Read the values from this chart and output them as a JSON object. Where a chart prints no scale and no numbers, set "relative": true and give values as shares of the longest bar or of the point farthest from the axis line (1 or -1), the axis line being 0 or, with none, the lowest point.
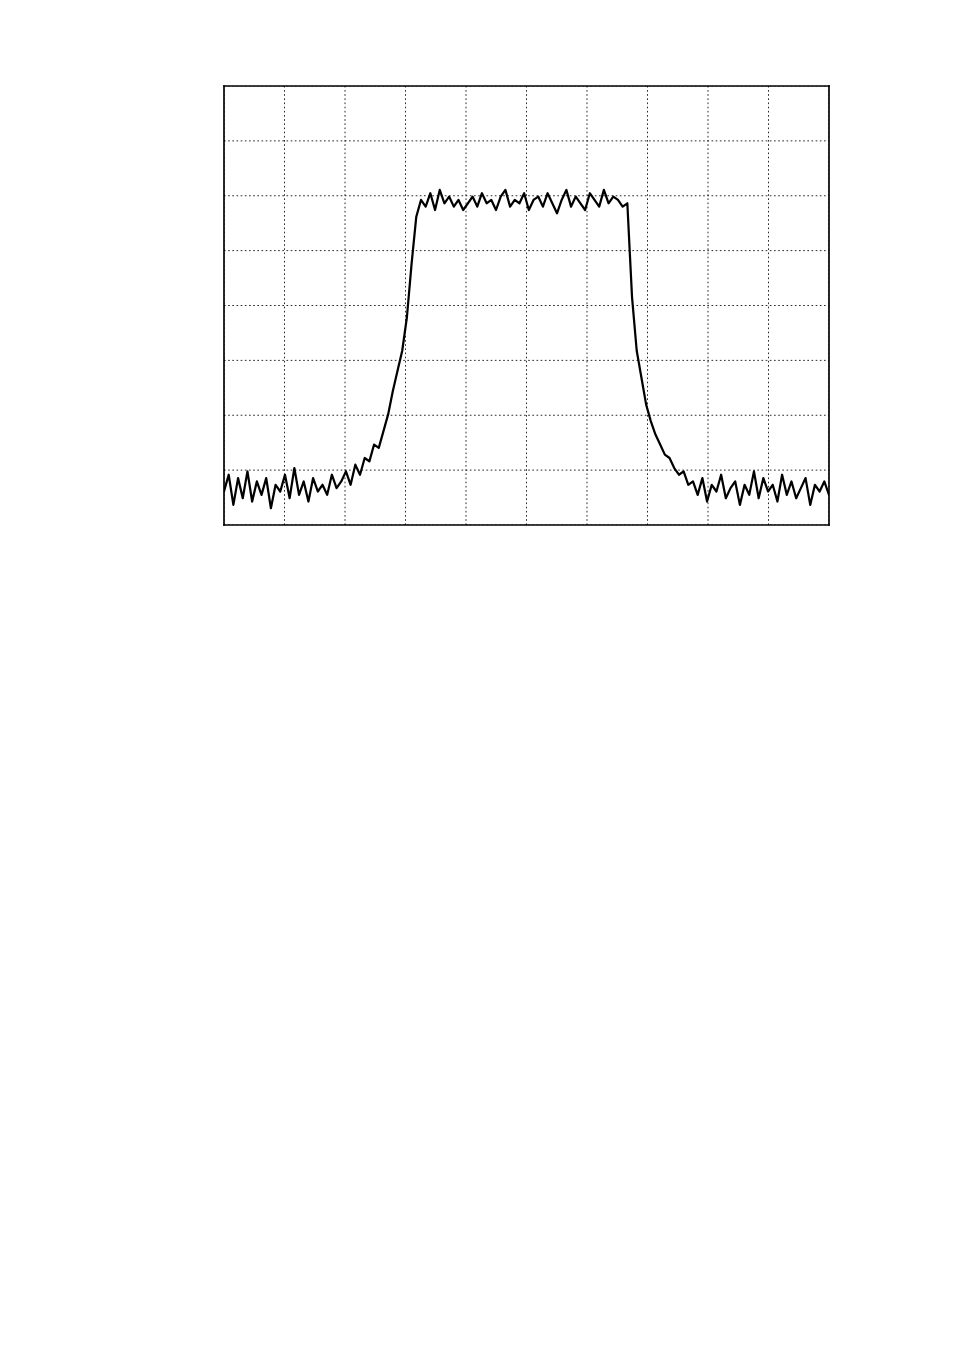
{
  "chart_data": {
    "type": "line",
    "relative": true,
    "grid": true,
    "tick_labels": false,
    "color": "#000000",
    "categories": [
      null,
      null,
      null,
      null,
      null,
      null,
      null,
      null,
      null,
      null,
      null,
      null,
      null,
      null,
      null,
      null,
      null,
      null,
      null,
      null,
      null,
      null,
      null,
      null,
      null,
      null,
      null,
      null,
      null,
      null,
      null,
      null,
      null,
      null,
      null,
      null,
      null,
      null,
      null,
      null,
      null,
      null,
      null,
      null,
      null,
      null,
      null,
      null,
      null,
      null,
      null,
      null,
      null,
      null,
      null,
      null,
      null,
      null,
      null,
      null,
      null,
      null,
      null,
      null,
      null,
      null,
      null,
      null,
      null,
      null,
      null,
      null,
      null,
      null,
      null,
      null,
      null,
      null,
      null,
      null,
      null,
      null,
      null,
      null,
      null,
      null,
      null,
      null,
      null,
      null,
      null,
      null,
      null,
      null,
      null,
      null,
      null,
      null,
      null,
      null,
      null,
      null,
      null,
      null,
      null,
      null,
      null,
      null,
      null,
      null,
      null,
      null,
      null,
      null,
      null,
      null,
      null,
      null,
      null,
      null,
      null,
      null,
      null,
      null,
      null,
      null,
      null,
      null,
      null,
      null
    ],
    "values": [
      0.1,
      0.15,
      0.06,
      0.14,
      0.08,
      0.16,
      0.07,
      0.13,
      0.09,
      0.14,
      0.05,
      0.12,
      0.1,
      0.15,
      0.08,
      0.17,
      0.09,
      0.13,
      0.07,
      0.14,
      0.1,
      0.12,
      0.09,
      0.15,
      0.11,
      0.13,
      0.16,
      0.12,
      0.18,
      0.15,
      0.2,
      0.19,
      0.24,
      0.23,
      0.28,
      0.33,
      0.4,
      0.46,
      0.52,
      0.62,
      0.78,
      0.92,
      0.97,
      0.95,
      0.99,
      0.94,
      1.0,
      0.96,
      0.98,
      0.95,
      0.97,
      0.94,
      0.96,
      0.98,
      0.95,
      0.99,
      0.96,
      0.97,
      0.94,
      0.98,
      1.0,
      0.95,
      0.97,
      0.96,
      0.99,
      0.94,
      0.97,
      0.98,
      0.95,
      0.99,
      0.96,
      0.93,
      0.97,
      1.0,
      0.95,
      0.98,
      0.96,
      0.94,
      0.99,
      0.97,
      0.95,
      1.0,
      0.96,
      0.98,
      0.97,
      0.95,
      0.96,
      0.68,
      0.52,
      0.44,
      0.36,
      0.31,
      0.27,
      0.24,
      0.21,
      0.2,
      0.17,
      0.15,
      0.16,
      0.12,
      0.13,
      0.09,
      0.14,
      0.07,
      0.12,
      0.1,
      0.15,
      0.08,
      0.11,
      0.13,
      0.06,
      0.12,
      0.09,
      0.16,
      0.08,
      0.14,
      0.1,
      0.12,
      0.07,
      0.15,
      0.09,
      0.13,
      0.08,
      0.11,
      0.14,
      0.06,
      0.12,
      0.1,
      0.13,
      0.09
    ]
  }
}
